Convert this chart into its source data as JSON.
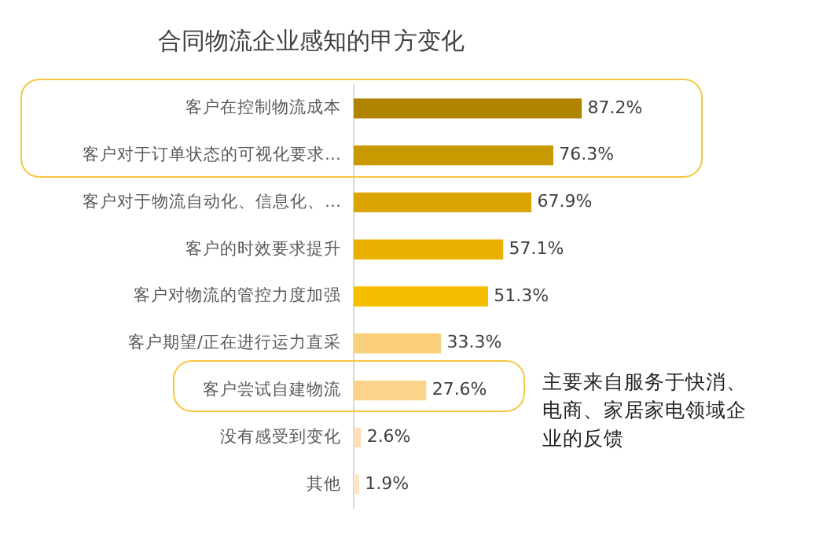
{
  "chart_data": {
    "type": "bar",
    "orientation": "horizontal",
    "title": "合同物流企业感知的甲方变化",
    "categories": [
      "客户在控制物流成本",
      "客户对于订单状态的可视化要求…",
      "客户对于物流自动化、信息化、…",
      "客户的时效要求提升",
      "客户对物流的管控力度加强",
      "客户期望/正在进行运力直采",
      "客户尝试自建物流",
      "没有感受到变化",
      "其他"
    ],
    "values": [
      87.2,
      76.3,
      67.9,
      57.1,
      51.3,
      33.3,
      27.6,
      2.6,
      1.9
    ],
    "colors": [
      "#b08300",
      "#c99a00",
      "#dba400",
      "#e8b000",
      "#f5bf00",
      "#fbd07c",
      "#fcd38c",
      "#fde0b8",
      "#fde6c8"
    ],
    "value_labels": [
      "87.2%",
      "76.3%",
      "67.9%",
      "57.1%",
      "51.3%",
      "33.3%",
      "27.6%",
      "2.6%",
      "1.9%"
    ],
    "annotations": [
      "主要来自服务于快消、电商、家居家电领域企业的反馈"
    ],
    "grid": false,
    "legend": false
  }
}
